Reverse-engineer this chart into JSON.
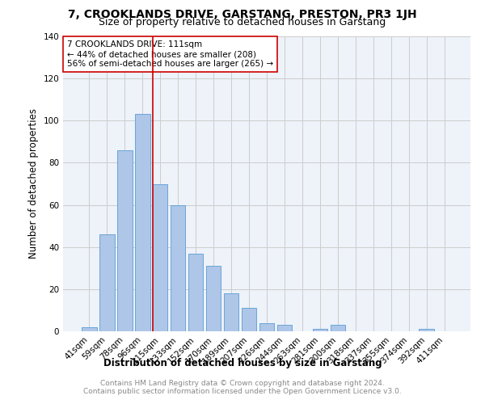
{
  "title": "7, CROOKLANDS DRIVE, GARSTANG, PRESTON, PR3 1JH",
  "subtitle": "Size of property relative to detached houses in Garstang",
  "xlabel": "Distribution of detached houses by size in Garstang",
  "ylabel": "Number of detached properties",
  "footnote1": "Contains HM Land Registry data © Crown copyright and database right 2024.",
  "footnote2": "Contains public sector information licensed under the Open Government Licence v3.0.",
  "bar_labels": [
    "41sqm",
    "59sqm",
    "78sqm",
    "96sqm",
    "115sqm",
    "133sqm",
    "152sqm",
    "170sqm",
    "189sqm",
    "207sqm",
    "226sqm",
    "244sqm",
    "263sqm",
    "281sqm",
    "300sqm",
    "318sqm",
    "337sqm",
    "355sqm",
    "374sqm",
    "392sqm",
    "411sqm"
  ],
  "bar_values": [
    2,
    46,
    86,
    103,
    70,
    60,
    37,
    31,
    18,
    11,
    4,
    3,
    0,
    1,
    3,
    0,
    0,
    0,
    0,
    1,
    0
  ],
  "bar_color": "#aec6e8",
  "bar_edge_color": "#5a9ed4",
  "vline_color": "#cc0000",
  "vline_x": 3.575,
  "annotation_text": "7 CROOKLANDS DRIVE: 111sqm\n← 44% of detached houses are smaller (208)\n56% of semi-detached houses are larger (265) →",
  "annotation_box_color": "#ffffff",
  "annotation_box_edge": "#cc0000",
  "ylim": [
    0,
    140
  ],
  "yticks": [
    0,
    20,
    40,
    60,
    80,
    100,
    120,
    140
  ],
  "grid_color": "#cccccc",
  "bg_color": "#eef2f9",
  "title_fontsize": 10,
  "subtitle_fontsize": 9,
  "axis_label_fontsize": 8.5,
  "tick_fontsize": 7.5,
  "footnote_fontsize": 6.5,
  "annotation_fontsize": 7.5
}
